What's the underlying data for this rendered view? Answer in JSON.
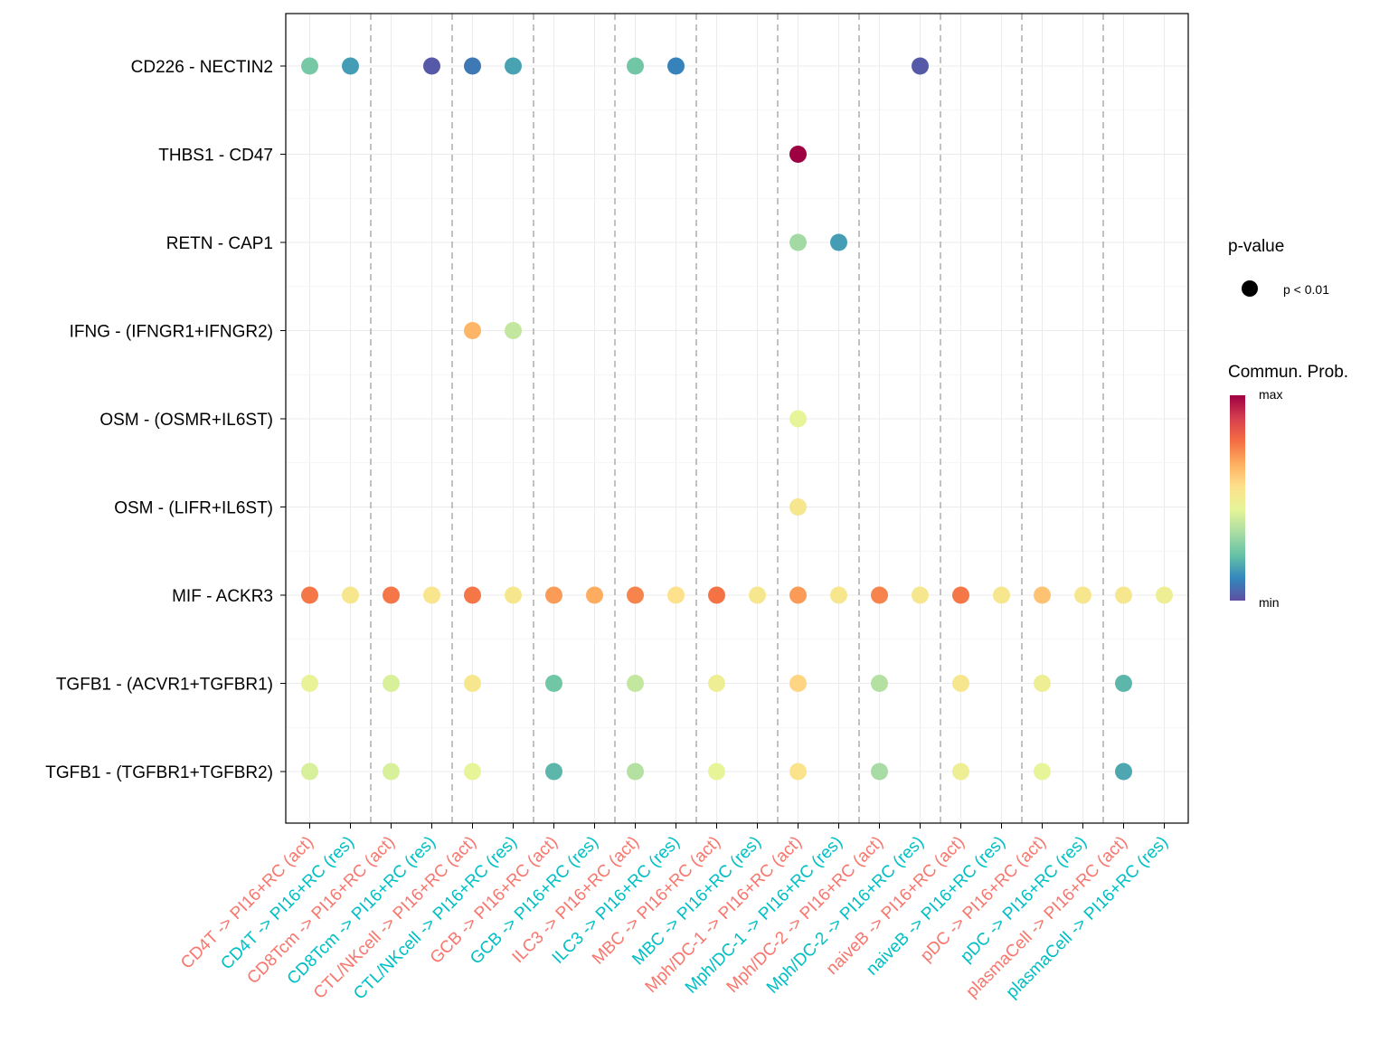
{
  "chart_data": {
    "type": "scatter",
    "title": "",
    "xlabel": "",
    "ylabel": "",
    "x_categories": [
      "CD4T -> PI16+RC (act)",
      "CD4T -> PI16+RC (res)",
      "CD8Tcm -> PI16+RC (act)",
      "CD8Tcm -> PI16+RC (res)",
      "CTL/NKcell -> PI16+RC (act)",
      "CTL/NKcell -> PI16+RC (res)",
      "GCB -> PI16+RC (act)",
      "GCB -> PI16+RC (res)",
      "ILC3 -> PI16+RC (act)",
      "ILC3 -> PI16+RC (res)",
      "MBC -> PI16+RC (act)",
      "MBC -> PI16+RC (res)",
      "Mph/DC-1 -> PI16+RC (act)",
      "Mph/DC-1 -> PI16+RC (res)",
      "Mph/DC-2 -> PI16+RC (act)",
      "Mph/DC-2 -> PI16+RC (res)",
      "naiveB -> PI16+RC (act)",
      "naiveB -> PI16+RC (res)",
      "pDC -> PI16+RC (act)",
      "pDC -> PI16+RC (res)",
      "plasmaCell -> PI16+RC (act)",
      "plasmaCell -> PI16+RC (res)"
    ],
    "x_label_colors": {
      "act": "#F8766D",
      "res": "#00BFC4"
    },
    "y_categories": [
      "CD226 - NECTIN2",
      "THBS1 - CD47",
      "RETN - CAP1",
      "IFNG - (IFNGR1+IFNGR2)",
      "OSM - (OSMR+IL6ST)",
      "OSM - (LIFR+IL6ST)",
      "MIF - ACKR3",
      "TGFB1 - (ACVR1+TGFBR1)",
      "TGFB1 - (TGFBR1+TGFBR2)"
    ],
    "points": [
      {
        "x": 0,
        "y": 0,
        "prob": 0.25
      },
      {
        "x": 1,
        "y": 0,
        "prob": 0.15
      },
      {
        "x": 3,
        "y": 0,
        "prob": 0.02
      },
      {
        "x": 4,
        "y": 0,
        "prob": 0.08
      },
      {
        "x": 5,
        "y": 0,
        "prob": 0.16
      },
      {
        "x": 8,
        "y": 0,
        "prob": 0.24
      },
      {
        "x": 9,
        "y": 0,
        "prob": 0.1
      },
      {
        "x": 15,
        "y": 0,
        "prob": 0.02
      },
      {
        "x": 12,
        "y": 1,
        "prob": 1.0
      },
      {
        "x": 12,
        "y": 2,
        "prob": 0.32
      },
      {
        "x": 13,
        "y": 2,
        "prob": 0.15
      },
      {
        "x": 4,
        "y": 3,
        "prob": 0.65
      },
      {
        "x": 5,
        "y": 3,
        "prob": 0.38
      },
      {
        "x": 12,
        "y": 4,
        "prob": 0.45
      },
      {
        "x": 12,
        "y": 5,
        "prob": 0.52
      },
      {
        "x": 0,
        "y": 6,
        "prob": 0.76
      },
      {
        "x": 1,
        "y": 6,
        "prob": 0.52
      },
      {
        "x": 2,
        "y": 6,
        "prob": 0.76
      },
      {
        "x": 3,
        "y": 6,
        "prob": 0.53
      },
      {
        "x": 4,
        "y": 6,
        "prob": 0.76
      },
      {
        "x": 5,
        "y": 6,
        "prob": 0.52
      },
      {
        "x": 6,
        "y": 6,
        "prob": 0.7
      },
      {
        "x": 7,
        "y": 6,
        "prob": 0.67
      },
      {
        "x": 8,
        "y": 6,
        "prob": 0.74
      },
      {
        "x": 9,
        "y": 6,
        "prob": 0.55
      },
      {
        "x": 10,
        "y": 6,
        "prob": 0.77
      },
      {
        "x": 11,
        "y": 6,
        "prob": 0.52
      },
      {
        "x": 12,
        "y": 6,
        "prob": 0.7
      },
      {
        "x": 13,
        "y": 6,
        "prob": 0.52
      },
      {
        "x": 14,
        "y": 6,
        "prob": 0.74
      },
      {
        "x": 15,
        "y": 6,
        "prob": 0.52
      },
      {
        "x": 16,
        "y": 6,
        "prob": 0.76
      },
      {
        "x": 17,
        "y": 6,
        "prob": 0.52
      },
      {
        "x": 18,
        "y": 6,
        "prob": 0.62
      },
      {
        "x": 19,
        "y": 6,
        "prob": 0.52
      },
      {
        "x": 20,
        "y": 6,
        "prob": 0.52
      },
      {
        "x": 21,
        "y": 6,
        "prob": 0.48
      },
      {
        "x": 0,
        "y": 7,
        "prob": 0.46
      },
      {
        "x": 2,
        "y": 7,
        "prob": 0.42
      },
      {
        "x": 4,
        "y": 7,
        "prob": 0.52
      },
      {
        "x": 6,
        "y": 7,
        "prob": 0.24
      },
      {
        "x": 8,
        "y": 7,
        "prob": 0.38
      },
      {
        "x": 10,
        "y": 7,
        "prob": 0.48
      },
      {
        "x": 12,
        "y": 7,
        "prob": 0.58
      },
      {
        "x": 14,
        "y": 7,
        "prob": 0.35
      },
      {
        "x": 16,
        "y": 7,
        "prob": 0.52
      },
      {
        "x": 18,
        "y": 7,
        "prob": 0.48
      },
      {
        "x": 20,
        "y": 7,
        "prob": 0.2
      },
      {
        "x": 0,
        "y": 8,
        "prob": 0.42
      },
      {
        "x": 2,
        "y": 8,
        "prob": 0.42
      },
      {
        "x": 4,
        "y": 8,
        "prob": 0.45
      },
      {
        "x": 6,
        "y": 8,
        "prob": 0.2
      },
      {
        "x": 8,
        "y": 8,
        "prob": 0.35
      },
      {
        "x": 10,
        "y": 8,
        "prob": 0.45
      },
      {
        "x": 12,
        "y": 8,
        "prob": 0.54
      },
      {
        "x": 14,
        "y": 8,
        "prob": 0.33
      },
      {
        "x": 16,
        "y": 8,
        "prob": 0.48
      },
      {
        "x": 18,
        "y": 8,
        "prob": 0.45
      },
      {
        "x": 20,
        "y": 8,
        "prob": 0.17
      }
    ],
    "grid": true,
    "group_separators": "dashed",
    "legend": {
      "placement": "right",
      "pvalue_title": "p-value",
      "pvalue_label": "p < 0.01",
      "color_title": "Commun. Prob.",
      "color_max_label": "max",
      "color_min_label": "min",
      "colorscale": [
        "#5E4FA2",
        "#3288BD",
        "#66C2A5",
        "#ABDDA4",
        "#E6F598",
        "#FEE08B",
        "#FDAE61",
        "#F46D43",
        "#D53E4F",
        "#9E0142"
      ]
    }
  }
}
